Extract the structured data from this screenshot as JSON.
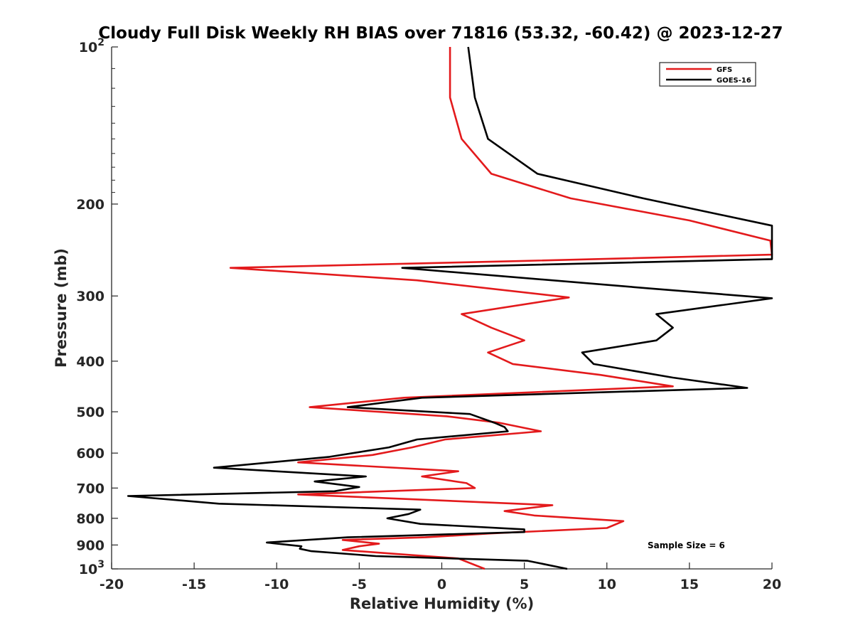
{
  "chart_data": {
    "type": "line",
    "title": "Cloudy Full Disk Weekly RH BIAS over 71816 (53.32, -60.42) @ 2023-12-27",
    "xlabel": "Relative Humidity (%)",
    "ylabel": "Pressure (mb)",
    "xlim": [
      -20,
      20
    ],
    "ylim": [
      1000,
      100
    ],
    "yscale": "log",
    "y_reversed": true,
    "grid": false,
    "legend_position": "top-right",
    "annotation": "Sample Size = 6",
    "xticks": [
      "-20",
      "-15",
      "-10",
      "-5",
      "0",
      "5",
      "10",
      "15",
      "20"
    ],
    "yticks": [
      {
        "value": 100,
        "base": "10",
        "exp": "2"
      },
      {
        "value": 200,
        "label": "200"
      },
      {
        "value": 300,
        "label": "300"
      },
      {
        "value": 400,
        "label": "400"
      },
      {
        "value": 500,
        "label": "500"
      },
      {
        "value": 600,
        "label": "600"
      },
      {
        "value": 700,
        "label": "700"
      },
      {
        "value": 800,
        "label": "800"
      },
      {
        "value": 900,
        "label": "900"
      },
      {
        "value": 1000,
        "base": "10",
        "exp": "3"
      }
    ],
    "series": [
      {
        "name": "GFS",
        "color": "#e31a1c",
        "points": [
          [
            0.5,
            100
          ],
          [
            0.5,
            125
          ],
          [
            1.2,
            150
          ],
          [
            3.0,
            175
          ],
          [
            7.8,
            195
          ],
          [
            15.0,
            215
          ],
          [
            19.9,
            235
          ],
          [
            20.0,
            250
          ],
          [
            5.0,
            257
          ],
          [
            -12.8,
            265
          ],
          [
            -1.5,
            280
          ],
          [
            7.7,
            302
          ],
          [
            1.2,
            325
          ],
          [
            3.0,
            345
          ],
          [
            5.0,
            365
          ],
          [
            2.8,
            385
          ],
          [
            4.3,
            405
          ],
          [
            9.6,
            425
          ],
          [
            14.0,
            447
          ],
          [
            -2.3,
            470
          ],
          [
            -8.0,
            490
          ],
          [
            0.3,
            510
          ],
          [
            3.5,
            525
          ],
          [
            6.0,
            545
          ],
          [
            0.2,
            565
          ],
          [
            -1.8,
            585
          ],
          [
            -4.2,
            605
          ],
          [
            -8.7,
            625
          ],
          [
            1.0,
            650
          ],
          [
            -1.2,
            665
          ],
          [
            1.5,
            685
          ],
          [
            2.0,
            700
          ],
          [
            -8.7,
            720
          ],
          [
            6.7,
            755
          ],
          [
            3.8,
            775
          ],
          [
            5.6,
            790
          ],
          [
            11.0,
            810
          ],
          [
            10.0,
            835
          ],
          [
            3.0,
            855
          ],
          [
            -1.0,
            870
          ],
          [
            -6.0,
            880
          ],
          [
            -3.8,
            895
          ],
          [
            -5.0,
            905
          ],
          [
            -6.0,
            920
          ],
          [
            -3.0,
            935
          ],
          [
            1.0,
            955
          ],
          [
            2.6,
            1000
          ]
        ]
      },
      {
        "name": "GOES-16",
        "color": "#000000",
        "points": [
          [
            1.6,
            100
          ],
          [
            2.0,
            125
          ],
          [
            2.8,
            150
          ],
          [
            5.8,
            175
          ],
          [
            12.2,
            195
          ],
          [
            20.0,
            220
          ],
          [
            20.0,
            255
          ],
          [
            -2.4,
            265
          ],
          [
            12.5,
            290
          ],
          [
            20.0,
            303
          ],
          [
            13.0,
            325
          ],
          [
            14.0,
            345
          ],
          [
            13.0,
            365
          ],
          [
            8.5,
            385
          ],
          [
            9.2,
            405
          ],
          [
            14.0,
            430
          ],
          [
            18.5,
            450
          ],
          [
            -1.2,
            470
          ],
          [
            -5.7,
            490
          ],
          [
            1.7,
            505
          ],
          [
            3.2,
            525
          ],
          [
            3.8,
            535
          ],
          [
            4.0,
            545
          ],
          [
            -1.5,
            565
          ],
          [
            -3.2,
            585
          ],
          [
            -6.8,
            610
          ],
          [
            -13.8,
            640
          ],
          [
            -4.6,
            665
          ],
          [
            -7.7,
            680
          ],
          [
            -5.0,
            697
          ],
          [
            -6.5,
            710
          ],
          [
            -19.0,
            725
          ],
          [
            -13.5,
            750
          ],
          [
            -1.3,
            770
          ],
          [
            -2.0,
            785
          ],
          [
            -3.3,
            800
          ],
          [
            -1.3,
            820
          ],
          [
            5.0,
            840
          ],
          [
            5.0,
            850
          ],
          [
            -5.7,
            870
          ],
          [
            -10.6,
            890
          ],
          [
            -8.5,
            905
          ],
          [
            -8.6,
            915
          ],
          [
            -7.9,
            925
          ],
          [
            -4.0,
            945
          ],
          [
            5.2,
            965
          ],
          [
            7.6,
            1000
          ]
        ]
      }
    ]
  }
}
